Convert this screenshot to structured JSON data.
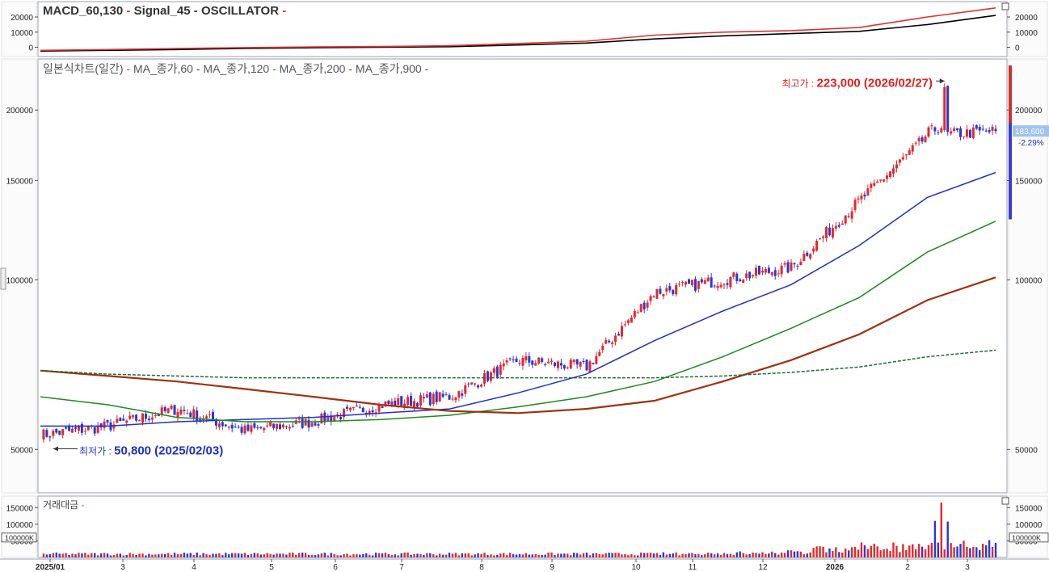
{
  "macd_pane": {
    "title_parts": [
      {
        "text": "MACD_60,130",
        "color": "#333333"
      },
      {
        "text": " - ",
        "color": "#e03030"
      },
      {
        "text": "Signal_45",
        "color": "#333333"
      },
      {
        "text": " - ",
        "color": "#333333"
      },
      {
        "text": "OSCILLATOR",
        "color": "#333333"
      },
      {
        "text": " -",
        "color": "#e03030"
      }
    ],
    "ticks": [
      "20000",
      "10000",
      "0"
    ]
  },
  "price_pane": {
    "title_parts": [
      {
        "text": "일본식차트(일간)",
        "color": "#555555"
      },
      {
        "text": " - ",
        "color": "#e03030"
      },
      {
        "text": "MA_종가,60",
        "color": "#555555"
      },
      {
        "text": " - ",
        "color": "#1f2fd0"
      },
      {
        "text": "MA_종가,120",
        "color": "#555555"
      },
      {
        "text": " - ",
        "color": "#1e8a1e"
      },
      {
        "text": "MA_종가,200",
        "color": "#555555"
      },
      {
        "text": " - ",
        "color": "#a03010"
      },
      {
        "text": "MA_종가,900",
        "color": "#555555"
      },
      {
        "text": " -",
        "color": "#1e6a3a"
      }
    ],
    "ticks": [
      "200000",
      "150000",
      "100000",
      "50000"
    ],
    "high_label": {
      "prefix": "최고가 : ",
      "value": "223,000 (2026/02/27)",
      "color": "#e02020"
    },
    "low_label": {
      "prefix": "최저가 : ",
      "value": "50,800 (2025/02/03)",
      "color": "#1f2fd0"
    },
    "current_price": "183,600",
    "change_pct": "-2.29%"
  },
  "volume_pane": {
    "title": "거래대금",
    "ticks": [
      "150000",
      "100000",
      "50000"
    ],
    "boxed_tick": "100000K"
  },
  "x_axis": {
    "labels": [
      "2025/01",
      "3",
      "4",
      "5",
      "6",
      "7",
      "8",
      "9",
      "10",
      "11",
      "12",
      "2026",
      "2",
      "3"
    ]
  },
  "chart_data": {
    "type": "candlestick",
    "x_label_months": [
      "2025/01",
      "3",
      "4",
      "5",
      "6",
      "7",
      "8",
      "9",
      "10",
      "11",
      "12",
      "2026",
      "2",
      "3"
    ],
    "price_y_ticks": [
      50000,
      100000,
      150000,
      200000
    ],
    "price_scale": "log",
    "price_range": [
      43000,
      240000
    ],
    "close_series_approx": {
      "x": [
        "2025/01",
        "2025/02",
        "2025/03",
        "2025/04",
        "2025/05",
        "2025/06",
        "2025/07",
        "2025/08",
        "2025/09",
        "2025/10",
        "2025/11",
        "2025/12",
        "2026/01",
        "2026/02",
        "2026/03"
      ],
      "values": [
        53000,
        55000,
        59000,
        54000,
        56000,
        60000,
        62000,
        72000,
        70000,
        95000,
        100000,
        105000,
        138000,
        180000,
        183600
      ]
    },
    "moving_averages": [
      {
        "name": "MA_종가,60",
        "color": "#1f2fd0",
        "values": [
          55000,
          55000,
          56000,
          56500,
          57000,
          58000,
          59000,
          63000,
          68000,
          78000,
          88000,
          98000,
          115000,
          140000,
          155000
        ]
      },
      {
        "name": "MA_종가,120",
        "color": "#1e8a1e",
        "values": [
          62000,
          60000,
          57000,
          56000,
          56000,
          56500,
          57500,
          59500,
          62000,
          66000,
          73000,
          82000,
          93000,
          112000,
          127000
        ]
      },
      {
        "name": "MA_종가,200",
        "color": "#a03010",
        "values": [
          69000,
          67500,
          66000,
          64000,
          62000,
          60000,
          58500,
          58000,
          59000,
          61000,
          66000,
          72000,
          80000,
          92000,
          101000
        ]
      },
      {
        "name": "MA_종가,900",
        "color": "#1e6a3a",
        "values": [
          69000,
          68000,
          67500,
          67000,
          67000,
          67000,
          67000,
          67000,
          67000,
          67000,
          67500,
          68500,
          70000,
          73000,
          75000
        ]
      }
    ],
    "high": {
      "value": 223000,
      "date": "2026/02/27"
    },
    "low": {
      "value": 50800,
      "date": "2025/02/03"
    },
    "last": 183600,
    "last_change_pct": -2.29,
    "macd_y_ticks": [
      0,
      10000,
      20000
    ],
    "macd_series": [
      {
        "name": "MACD_60,130",
        "color": "#e03030",
        "values": [
          -2000,
          -1500,
          -800,
          -200,
          200,
          500,
          1000,
          2500,
          4000,
          8000,
          10000,
          11000,
          13000,
          20000,
          26000
        ]
      },
      {
        "name": "Signal_45",
        "color": "#000000",
        "values": [
          -2500,
          -2000,
          -1500,
          -800,
          -300,
          0,
          400,
          1500,
          2800,
          5500,
          7500,
          9000,
          10500,
          15000,
          21000
        ]
      }
    ],
    "volume_y_ticks": [
      50000,
      100000,
      150000
    ],
    "volume_label": "거래대금"
  }
}
